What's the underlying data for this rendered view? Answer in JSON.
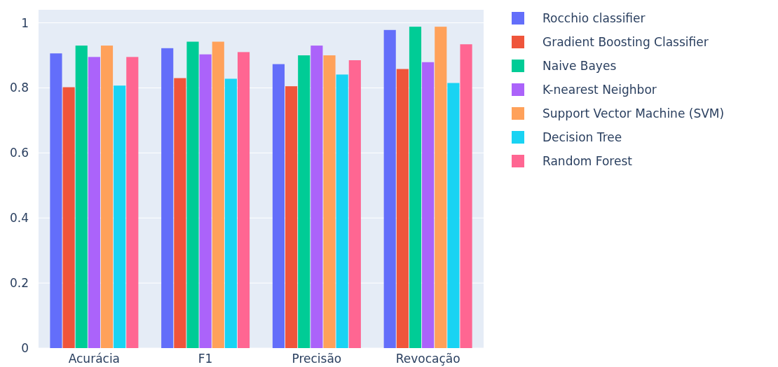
{
  "chart_data": {
    "type": "bar",
    "categories": [
      "Acurácia",
      "F1",
      "Precisão",
      "Revocação"
    ],
    "series": [
      {
        "name": "Rocchio classifier",
        "color": "#636efa",
        "values": [
          0.906,
          0.922,
          0.873,
          0.978
        ]
      },
      {
        "name": "Gradient Boosting Classifier",
        "color": "#ef553b",
        "values": [
          0.802,
          0.83,
          0.805,
          0.858
        ]
      },
      {
        "name": "Naive Bayes",
        "color": "#00cc96",
        "values": [
          0.93,
          0.942,
          0.9,
          0.988
        ]
      },
      {
        "name": "K-nearest Neighbor",
        "color": "#ab63fa",
        "values": [
          0.895,
          0.903,
          0.93,
          0.879
        ]
      },
      {
        "name": "Support Vector Machine (SVM)",
        "color": "#ffa15a",
        "values": [
          0.93,
          0.942,
          0.9,
          0.988
        ]
      },
      {
        "name": "Decision Tree",
        "color": "#19d3f3",
        "values": [
          0.807,
          0.828,
          0.841,
          0.815
        ]
      },
      {
        "name": "Random Forest",
        "color": "#ff6692",
        "values": [
          0.895,
          0.91,
          0.885,
          0.934
        ]
      }
    ],
    "ylim": [
      0,
      1.04
    ],
    "yticks": [
      0,
      0.2,
      0.4,
      0.6,
      0.8,
      1
    ],
    "grid": "y",
    "legend": "top right"
  }
}
